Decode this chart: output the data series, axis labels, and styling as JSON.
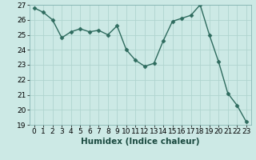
{
  "x": [
    0,
    1,
    2,
    3,
    4,
    5,
    6,
    7,
    8,
    9,
    10,
    11,
    12,
    13,
    14,
    15,
    16,
    17,
    18,
    19,
    20,
    21,
    22,
    23
  ],
  "y": [
    26.8,
    26.5,
    26.0,
    24.8,
    25.2,
    25.4,
    25.2,
    25.3,
    25.0,
    25.6,
    24.0,
    23.3,
    22.9,
    23.1,
    24.6,
    25.9,
    26.1,
    26.3,
    27.0,
    25.0,
    23.2,
    21.1,
    20.3,
    19.2
  ],
  "line_color": "#2e6b5e",
  "marker": "D",
  "marker_size": 2.5,
  "bg_color": "#cce9e5",
  "grid_color": "#b0d4cf",
  "xlabel": "Humidex (Indice chaleur)",
  "ylim": [
    19,
    27
  ],
  "xlim": [
    -0.5,
    23.5
  ],
  "yticks": [
    19,
    20,
    21,
    22,
    23,
    24,
    25,
    26,
    27
  ],
  "xticks": [
    0,
    1,
    2,
    3,
    4,
    5,
    6,
    7,
    8,
    9,
    10,
    11,
    12,
    13,
    14,
    15,
    16,
    17,
    18,
    19,
    20,
    21,
    22,
    23
  ],
  "tick_fontsize": 6.5,
  "xlabel_fontsize": 7.5,
  "linewidth": 1.0
}
